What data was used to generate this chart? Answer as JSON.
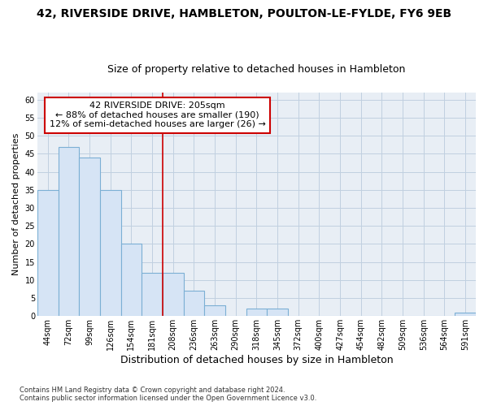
{
  "title1": "42, RIVERSIDE DRIVE, HAMBLETON, POULTON-LE-FYLDE, FY6 9EB",
  "title2": "Size of property relative to detached houses in Hambleton",
  "xlabel": "Distribution of detached houses by size in Hambleton",
  "ylabel": "Number of detached properties",
  "footnote": "Contains HM Land Registry data © Crown copyright and database right 2024.\nContains public sector information licensed under the Open Government Licence v3.0.",
  "categories": [
    "44sqm",
    "72sqm",
    "99sqm",
    "126sqm",
    "154sqm",
    "181sqm",
    "208sqm",
    "236sqm",
    "263sqm",
    "290sqm",
    "318sqm",
    "345sqm",
    "372sqm",
    "400sqm",
    "427sqm",
    "454sqm",
    "482sqm",
    "509sqm",
    "536sqm",
    "564sqm",
    "591sqm"
  ],
  "values": [
    35,
    47,
    44,
    35,
    20,
    12,
    12,
    7,
    3,
    0,
    2,
    2,
    0,
    0,
    0,
    0,
    0,
    0,
    0,
    0,
    1
  ],
  "bar_facecolor": "#d6e4f5",
  "bar_edgecolor": "#7bafd4",
  "vline_x_index": 6,
  "vline_color": "#cc0000",
  "ann_line1": "42 RIVERSIDE DRIVE: 205sqm",
  "ann_line2": "← 88% of detached houses are smaller (190)",
  "ann_line3": "12% of semi-detached houses are larger (26) →",
  "ann_box_edgecolor": "#cc0000",
  "ylim": [
    0,
    62
  ],
  "yticks": [
    0,
    5,
    10,
    15,
    20,
    25,
    30,
    35,
    40,
    45,
    50,
    55,
    60
  ],
  "grid_color": "#c0d0e0",
  "bg_color": "#e8eef5",
  "title1_fontsize": 10,
  "title2_fontsize": 9,
  "xlabel_fontsize": 9,
  "ylabel_fontsize": 8,
  "tick_fontsize": 7,
  "ann_fontsize": 8,
  "footnote_fontsize": 6
}
